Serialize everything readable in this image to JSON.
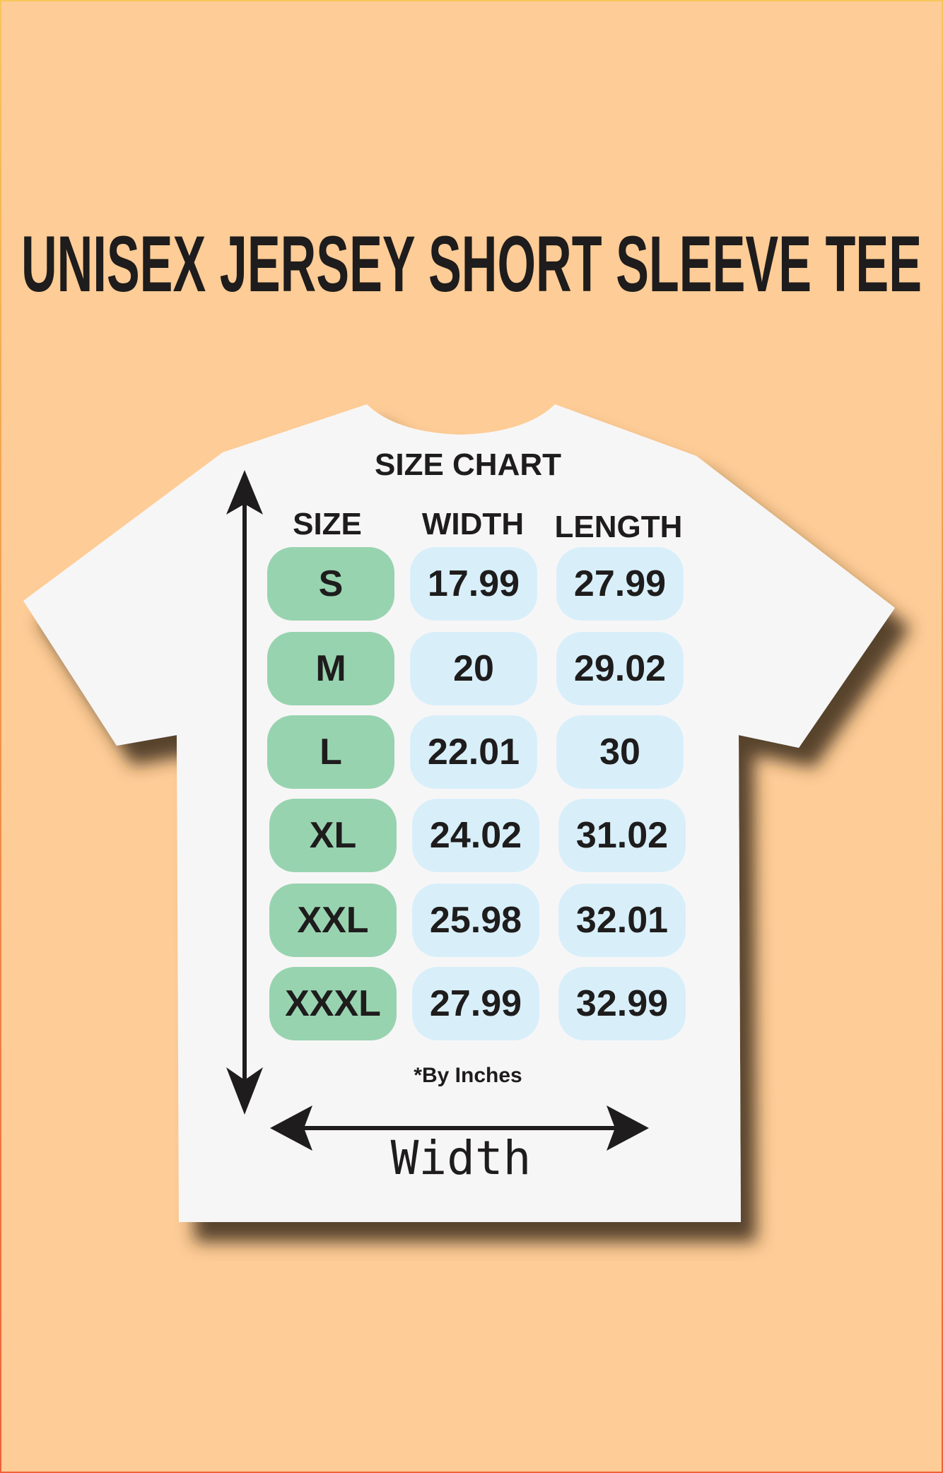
{
  "title": "UNISEX JERSEY SHORT SLEEVE TEE",
  "chart": {
    "heading": "SIZE CHART",
    "columns": [
      "SIZE",
      "WIDTH",
      "LENGTH"
    ],
    "rows": [
      {
        "size": "S",
        "width": "17.99",
        "length": "27.99"
      },
      {
        "size": "M",
        "width": "20",
        "length": "29.02"
      },
      {
        "size": "L",
        "width": "22.01",
        "length": "30"
      },
      {
        "size": "XL",
        "width": "24.02",
        "length": "31.02"
      },
      {
        "size": "XXL",
        "width": "25.98",
        "length": "32.01"
      },
      {
        "size": "XXXL",
        "width": "27.99",
        "length": "32.99"
      }
    ],
    "note": "*By Inches",
    "width_label": "Width"
  },
  "colors": {
    "background": "#FECC96",
    "size_pill": "#98D3B0",
    "value_pill": "#D8EFFA",
    "shirt": "#F7F6F6"
  }
}
